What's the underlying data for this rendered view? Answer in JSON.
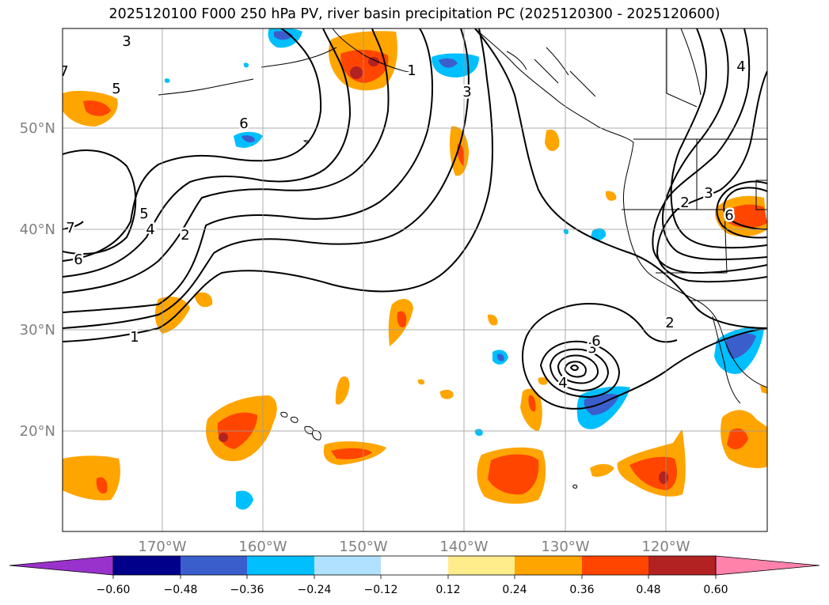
{
  "title": "2025120100 F000 250 hPa PV, river basin precipitation PC (2025120300 - 2025120600)",
  "map": {
    "projection": "PlateCarree",
    "extent": {
      "lon": [
        -180,
        -110
      ],
      "lat": [
        10,
        60
      ]
    },
    "gridlines": true,
    "lat_ticks": [
      {
        "label": "50°N",
        "value": 50
      },
      {
        "label": "40°N",
        "value": 40
      },
      {
        "label": "30°N",
        "value": 30
      },
      {
        "label": "20°N",
        "value": 20
      }
    ],
    "lon_ticks": [
      {
        "label": "170°W",
        "value": -170
      },
      {
        "label": "160°W",
        "value": -160
      },
      {
        "label": "150°W",
        "value": -150
      },
      {
        "label": "140°W",
        "value": -140
      },
      {
        "label": "130°W",
        "value": -130
      },
      {
        "label": "120°W",
        "value": -120
      }
    ],
    "contour_labels": [
      "1",
      "2",
      "3",
      "4",
      "5",
      "6",
      "7",
      "2",
      "3",
      "4",
      "5",
      "6",
      "1",
      "2",
      "3",
      "4",
      "6",
      "7",
      "3",
      "6"
    ]
  },
  "colorbar": {
    "ticks": [
      "−0.60",
      "−0.48",
      "−0.36",
      "−0.24",
      "−0.12",
      "0.12",
      "0.24",
      "0.36",
      "0.48",
      "0.60"
    ],
    "colors": {
      "under": "#9932cc",
      "neg_060": "#00008b",
      "neg_048": "#3a5fcd",
      "neg_036": "#00bfff",
      "neg_024": "#b0e2ff",
      "neutral": "#ffffff",
      "pos_012": "#ffec8b",
      "pos_024": "#ffa500",
      "pos_036": "#ff4500",
      "pos_048": "#b22222",
      "over": "#ff82ab"
    }
  }
}
